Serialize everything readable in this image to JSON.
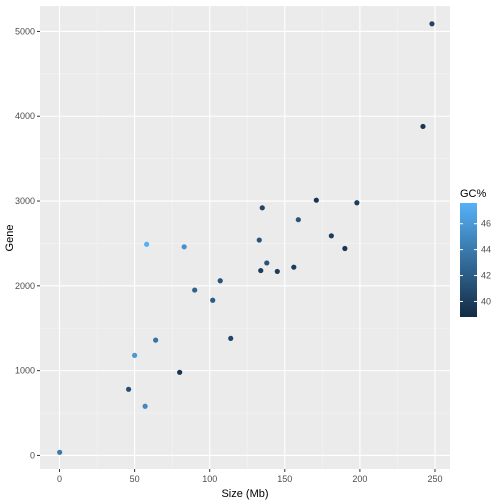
{
  "chart_data": {
    "type": "scatter",
    "xlabel": "Size (Mb)",
    "ylabel": "Gene",
    "xlim": [
      -13,
      260
    ],
    "ylim": [
      -160,
      5300
    ],
    "x_ticks": [
      0,
      50,
      100,
      150,
      200,
      250
    ],
    "x_tick_labels": [
      "0",
      "50",
      "100",
      "150",
      "200",
      "250"
    ],
    "y_ticks": [
      0,
      1000,
      2000,
      3000,
      4000,
      5000
    ],
    "y_tick_labels": [
      "0",
      "1000",
      "2000",
      "3000",
      "4000",
      "5000"
    ],
    "grid": true,
    "legend": {
      "title": "GC%",
      "position": "right",
      "range": [
        38.8,
        47.6
      ],
      "ticks": [
        40,
        42,
        44,
        46
      ],
      "tick_labels": [
        "40",
        "42",
        "44",
        "46"
      ],
      "low_color": "#132B43",
      "high_color": "#56B1F7"
    },
    "points": [
      {
        "x": 0.1,
        "y": 37,
        "gc": 44
      },
      {
        "x": 46,
        "y": 780,
        "gc": 41
      },
      {
        "x": 50,
        "y": 1180,
        "gc": 46
      },
      {
        "x": 57,
        "y": 580,
        "gc": 45
      },
      {
        "x": 58,
        "y": 2490,
        "gc": 47.5
      },
      {
        "x": 64,
        "y": 1360,
        "gc": 43.5
      },
      {
        "x": 80,
        "y": 980,
        "gc": 39.5
      },
      {
        "x": 83,
        "y": 2460,
        "gc": 45.5
      },
      {
        "x": 90,
        "y": 1950,
        "gc": 42.5
      },
      {
        "x": 102,
        "y": 1830,
        "gc": 42
      },
      {
        "x": 107,
        "y": 2060,
        "gc": 41.5
      },
      {
        "x": 114,
        "y": 1380,
        "gc": 40.5
      },
      {
        "x": 133,
        "y": 2540,
        "gc": 41.5
      },
      {
        "x": 134,
        "y": 2180,
        "gc": 40
      },
      {
        "x": 135,
        "y": 2920,
        "gc": 40.5
      },
      {
        "x": 138,
        "y": 2270,
        "gc": 41.5
      },
      {
        "x": 145,
        "y": 2170,
        "gc": 40
      },
      {
        "x": 156,
        "y": 2220,
        "gc": 40
      },
      {
        "x": 159,
        "y": 2780,
        "gc": 41.5
      },
      {
        "x": 171,
        "y": 3010,
        "gc": 39.5
      },
      {
        "x": 181,
        "y": 2590,
        "gc": 40
      },
      {
        "x": 190,
        "y": 2440,
        "gc": 39.5
      },
      {
        "x": 198,
        "y": 2980,
        "gc": 40
      },
      {
        "x": 242,
        "y": 3880,
        "gc": 39.5
      },
      {
        "x": 248,
        "y": 5090,
        "gc": 40.5
      }
    ]
  }
}
